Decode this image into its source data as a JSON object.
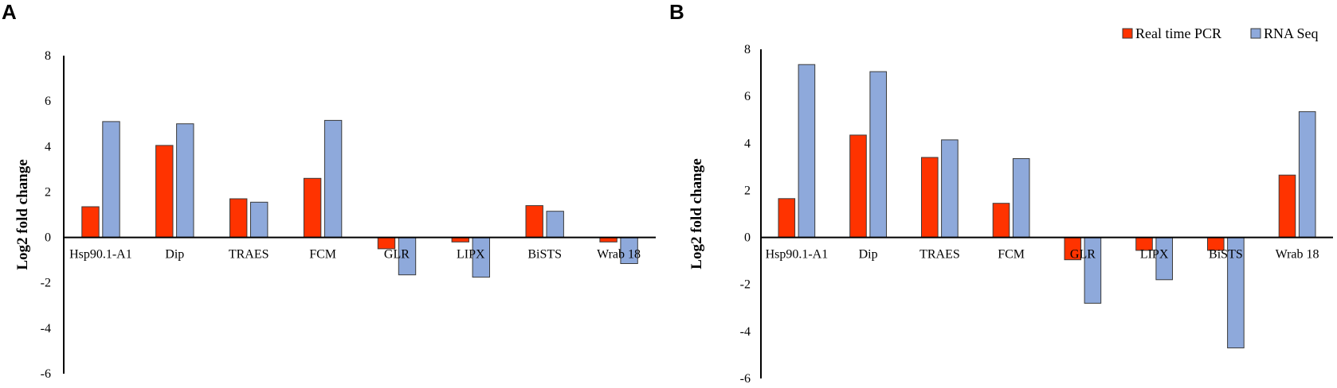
{
  "chart_data": [
    {
      "panel": "A",
      "type": "bar",
      "ylabel": "Log2 fold change",
      "xlabel": "",
      "ylim": [
        -6,
        8
      ],
      "yticks": [
        -6,
        -4,
        -2,
        0,
        2,
        4,
        6,
        8
      ],
      "categories": [
        "Hsp90.1-A1",
        "Dip",
        "TRAES",
        "FCM",
        "GLR",
        "LIPX",
        "BiSTS",
        "Wrab 18"
      ],
      "series": [
        {
          "name": "Real time PCR",
          "color": "#ff3300",
          "values": [
            1.35,
            4.05,
            1.7,
            2.6,
            -0.5,
            -0.2,
            1.4,
            -0.2
          ]
        },
        {
          "name": "RNA Seq",
          "color": "#8ea9db",
          "values": [
            5.1,
            5.0,
            1.55,
            5.15,
            -1.65,
            -1.75,
            1.15,
            -1.15
          ]
        }
      ],
      "legend": "none"
    },
    {
      "panel": "B",
      "type": "bar",
      "ylabel": "Log2 fold change",
      "xlabel": "",
      "ylim": [
        -6,
        8
      ],
      "yticks": [
        -6,
        -4,
        -2,
        0,
        2,
        4,
        6,
        8
      ],
      "categories": [
        "Hsp90.1-A1",
        "Dip",
        "TRAES",
        "FCM",
        "GLR",
        "LIPX",
        "BiSTS",
        "Wrab 18"
      ],
      "series": [
        {
          "name": "Real time PCR",
          "color": "#ff3300",
          "values": [
            1.65,
            4.35,
            3.4,
            1.45,
            -0.95,
            -0.55,
            -0.55,
            2.65
          ]
        },
        {
          "name": "RNA Seq",
          "color": "#8ea9db",
          "values": [
            7.35,
            7.05,
            4.15,
            3.35,
            -2.8,
            -1.8,
            -4.7,
            5.35
          ]
        }
      ],
      "legend": "top-right"
    }
  ]
}
